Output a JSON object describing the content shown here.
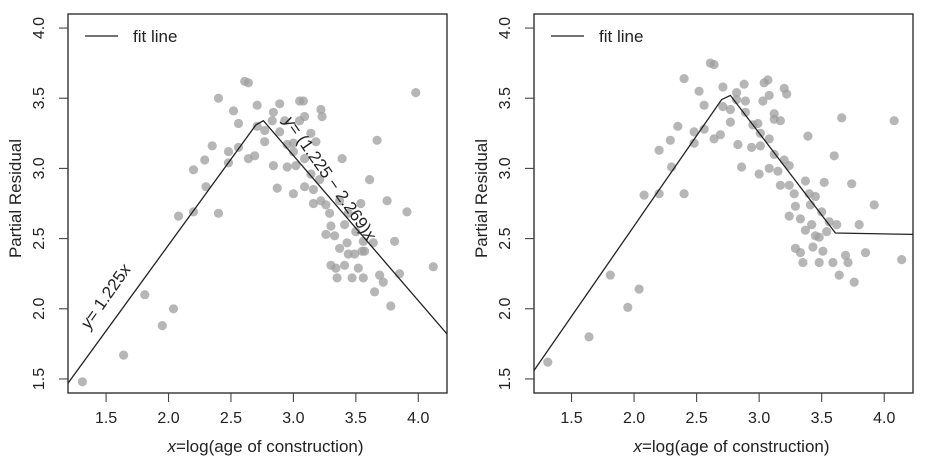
{
  "chart_data": [
    {
      "type": "scatter",
      "title": "",
      "xlabel_italic": "x",
      "xlabel_rest": "=log(age of construction)",
      "ylabel": "Partial Residual",
      "xlim": [
        1.195,
        4.23
      ],
      "ylim": [
        1.4,
        4.1
      ],
      "xticks": [
        1.5,
        2.0,
        2.5,
        3.0,
        3.5,
        4.0
      ],
      "xtick_labels": [
        "1.5",
        "2.0",
        "2.5",
        "3.0",
        "3.5",
        "4.0"
      ],
      "yticks": [
        1.5,
        2.0,
        2.5,
        3.0,
        3.5,
        4.0
      ],
      "ytick_labels": [
        "1.5",
        "2.0",
        "2.5",
        "3.0",
        "3.5",
        "4.0"
      ],
      "grid": false,
      "legend": {
        "position": "top-left",
        "entries": [
          {
            "label": "fit line",
            "type": "line"
          }
        ]
      },
      "annotations": [
        {
          "italic": "y",
          "text": "= 1.225x",
          "segment": "rising"
        },
        {
          "italic": "y",
          "text": "= (1.225 − 2.269)x",
          "segment": "falling"
        }
      ],
      "fit_line": {
        "x": [
          1.195,
          2.7,
          2.76,
          4.23
        ],
        "y": [
          1.47,
          3.31,
          3.34,
          1.82
        ]
      },
      "points": {
        "x": [
          1.31,
          1.64,
          1.81,
          1.95,
          2.04,
          2.08,
          2.2,
          2.2,
          2.29,
          2.3,
          2.35,
          2.4,
          2.4,
          2.48,
          2.48,
          2.52,
          2.56,
          2.56,
          2.61,
          2.64,
          2.64,
          2.69,
          2.71,
          2.71,
          2.77,
          2.77,
          2.83,
          2.84,
          2.84,
          2.89,
          2.89,
          2.87,
          2.93,
          2.95,
          2.95,
          3.0,
          3.0,
          3.0,
          3.02,
          3.05,
          3.05,
          3.08,
          3.09,
          3.09,
          3.09,
          3.14,
          3.14,
          3.18,
          3.16,
          3.16,
          3.22,
          3.23,
          3.22,
          3.21,
          3.26,
          3.26,
          3.29,
          3.3,
          3.3,
          3.33,
          3.34,
          3.35,
          3.37,
          3.37,
          3.39,
          3.41,
          3.41,
          3.43,
          3.44,
          3.44,
          3.47,
          3.49,
          3.5,
          3.52,
          3.54,
          3.56,
          3.55,
          3.57,
          3.56,
          3.61,
          3.64,
          3.65,
          3.67,
          3.69,
          3.72,
          3.75,
          3.78,
          3.81,
          3.85,
          3.91,
          3.98,
          4.12
        ],
        "y": [
          1.48,
          1.67,
          2.1,
          1.88,
          2.0,
          2.66,
          2.99,
          2.69,
          3.06,
          2.87,
          3.16,
          2.68,
          3.5,
          3.12,
          3.04,
          3.41,
          3.32,
          3.15,
          3.62,
          3.61,
          3.07,
          3.09,
          3.45,
          3.3,
          3.27,
          3.19,
          3.34,
          3.4,
          3.02,
          3.46,
          3.26,
          2.86,
          3.34,
          3.17,
          3.01,
          2.82,
          3.18,
          3.12,
          3.02,
          3.48,
          3.34,
          3.48,
          3.37,
          3.07,
          2.87,
          3.25,
          2.96,
          3.19,
          2.85,
          2.75,
          3.42,
          3.37,
          2.77,
          2.92,
          2.53,
          2.74,
          2.68,
          2.59,
          2.31,
          2.52,
          2.29,
          2.22,
          2.77,
          2.43,
          3.07,
          2.6,
          2.31,
          2.47,
          2.68,
          2.39,
          2.22,
          2.39,
          2.55,
          2.29,
          2.75,
          2.48,
          2.41,
          2.41,
          2.22,
          2.92,
          2.47,
          2.12,
          3.2,
          2.24,
          2.19,
          2.77,
          2.02,
          2.48,
          2.25,
          2.69,
          3.54,
          2.3
        ]
      }
    },
    {
      "type": "scatter",
      "title": "",
      "xlabel_italic": "x",
      "xlabel_rest": "=log(age of construction)",
      "ylabel": "Partial Residual",
      "xlim": [
        1.2,
        4.23
      ],
      "ylim": [
        1.4,
        4.1
      ],
      "xticks": [
        1.5,
        2.0,
        2.5,
        3.0,
        3.5,
        4.0
      ],
      "xtick_labels": [
        "1.5",
        "2.0",
        "2.5",
        "3.0",
        "3.5",
        "4.0"
      ],
      "yticks": [
        1.5,
        2.0,
        2.5,
        3.0,
        3.5,
        4.0
      ],
      "ytick_labels": [
        "1.5",
        "2.0",
        "2.5",
        "3.0",
        "3.5",
        "4.0"
      ],
      "grid": false,
      "legend": {
        "position": "top-left",
        "entries": [
          {
            "label": "fit line",
            "type": "line"
          }
        ]
      },
      "annotations": [],
      "fit_line": {
        "x": [
          1.2,
          2.7,
          2.77,
          3.61,
          4.23
        ],
        "y": [
          1.56,
          3.49,
          3.52,
          2.54,
          2.53
        ]
      },
      "points": {
        "x": [
          1.31,
          1.64,
          1.81,
          1.95,
          2.04,
          2.08,
          2.2,
          2.2,
          2.29,
          2.3,
          2.35,
          2.4,
          2.4,
          2.48,
          2.48,
          2.52,
          2.56,
          2.56,
          2.61,
          2.64,
          2.64,
          2.69,
          2.71,
          2.71,
          2.77,
          2.77,
          2.82,
          2.82,
          2.83,
          2.88,
          2.89,
          2.86,
          2.89,
          2.94,
          2.95,
          3.0,
          2.99,
          3.01,
          3.01,
          3.03,
          3.04,
          3.07,
          3.08,
          3.08,
          3.08,
          3.12,
          3.12,
          3.15,
          3.17,
          3.17,
          3.12,
          3.2,
          3.22,
          3.2,
          3.24,
          3.24,
          3.24,
          3.28,
          3.29,
          3.33,
          3.29,
          3.33,
          3.35,
          3.37,
          3.37,
          3.39,
          3.41,
          3.42,
          3.4,
          3.43,
          3.45,
          3.45,
          3.48,
          3.48,
          3.5,
          3.51,
          3.52,
          3.54,
          3.56,
          3.59,
          3.6,
          3.62,
          3.64,
          3.66,
          3.69,
          3.71,
          3.74,
          3.76,
          3.8,
          3.85,
          3.92,
          4.08,
          4.14
        ],
        "y": [
          1.62,
          1.8,
          2.24,
          2.01,
          2.14,
          2.81,
          3.13,
          2.82,
          3.2,
          3.01,
          3.3,
          3.64,
          2.82,
          3.26,
          3.18,
          3.55,
          3.45,
          3.28,
          3.75,
          3.74,
          3.21,
          3.24,
          3.58,
          3.44,
          3.42,
          3.33,
          3.54,
          3.49,
          3.17,
          3.6,
          3.48,
          3.01,
          3.4,
          3.15,
          3.31,
          2.96,
          3.32,
          3.16,
          3.25,
          3.48,
          3.61,
          3.63,
          3.52,
          3.21,
          3.0,
          3.39,
          3.35,
          2.98,
          3.34,
          2.88,
          3.1,
          3.57,
          3.53,
          3.06,
          3.02,
          2.66,
          2.88,
          2.82,
          2.73,
          2.64,
          2.43,
          2.4,
          2.33,
          2.56,
          2.91,
          3.23,
          2.74,
          2.6,
          2.82,
          2.44,
          2.52,
          2.8,
          2.33,
          2.51,
          2.69,
          2.41,
          2.9,
          2.55,
          2.62,
          2.33,
          3.09,
          2.6,
          2.24,
          3.36,
          2.38,
          2.33,
          2.89,
          2.19,
          2.6,
          2.4,
          2.74,
          3.34,
          2.35
        ]
      }
    }
  ]
}
